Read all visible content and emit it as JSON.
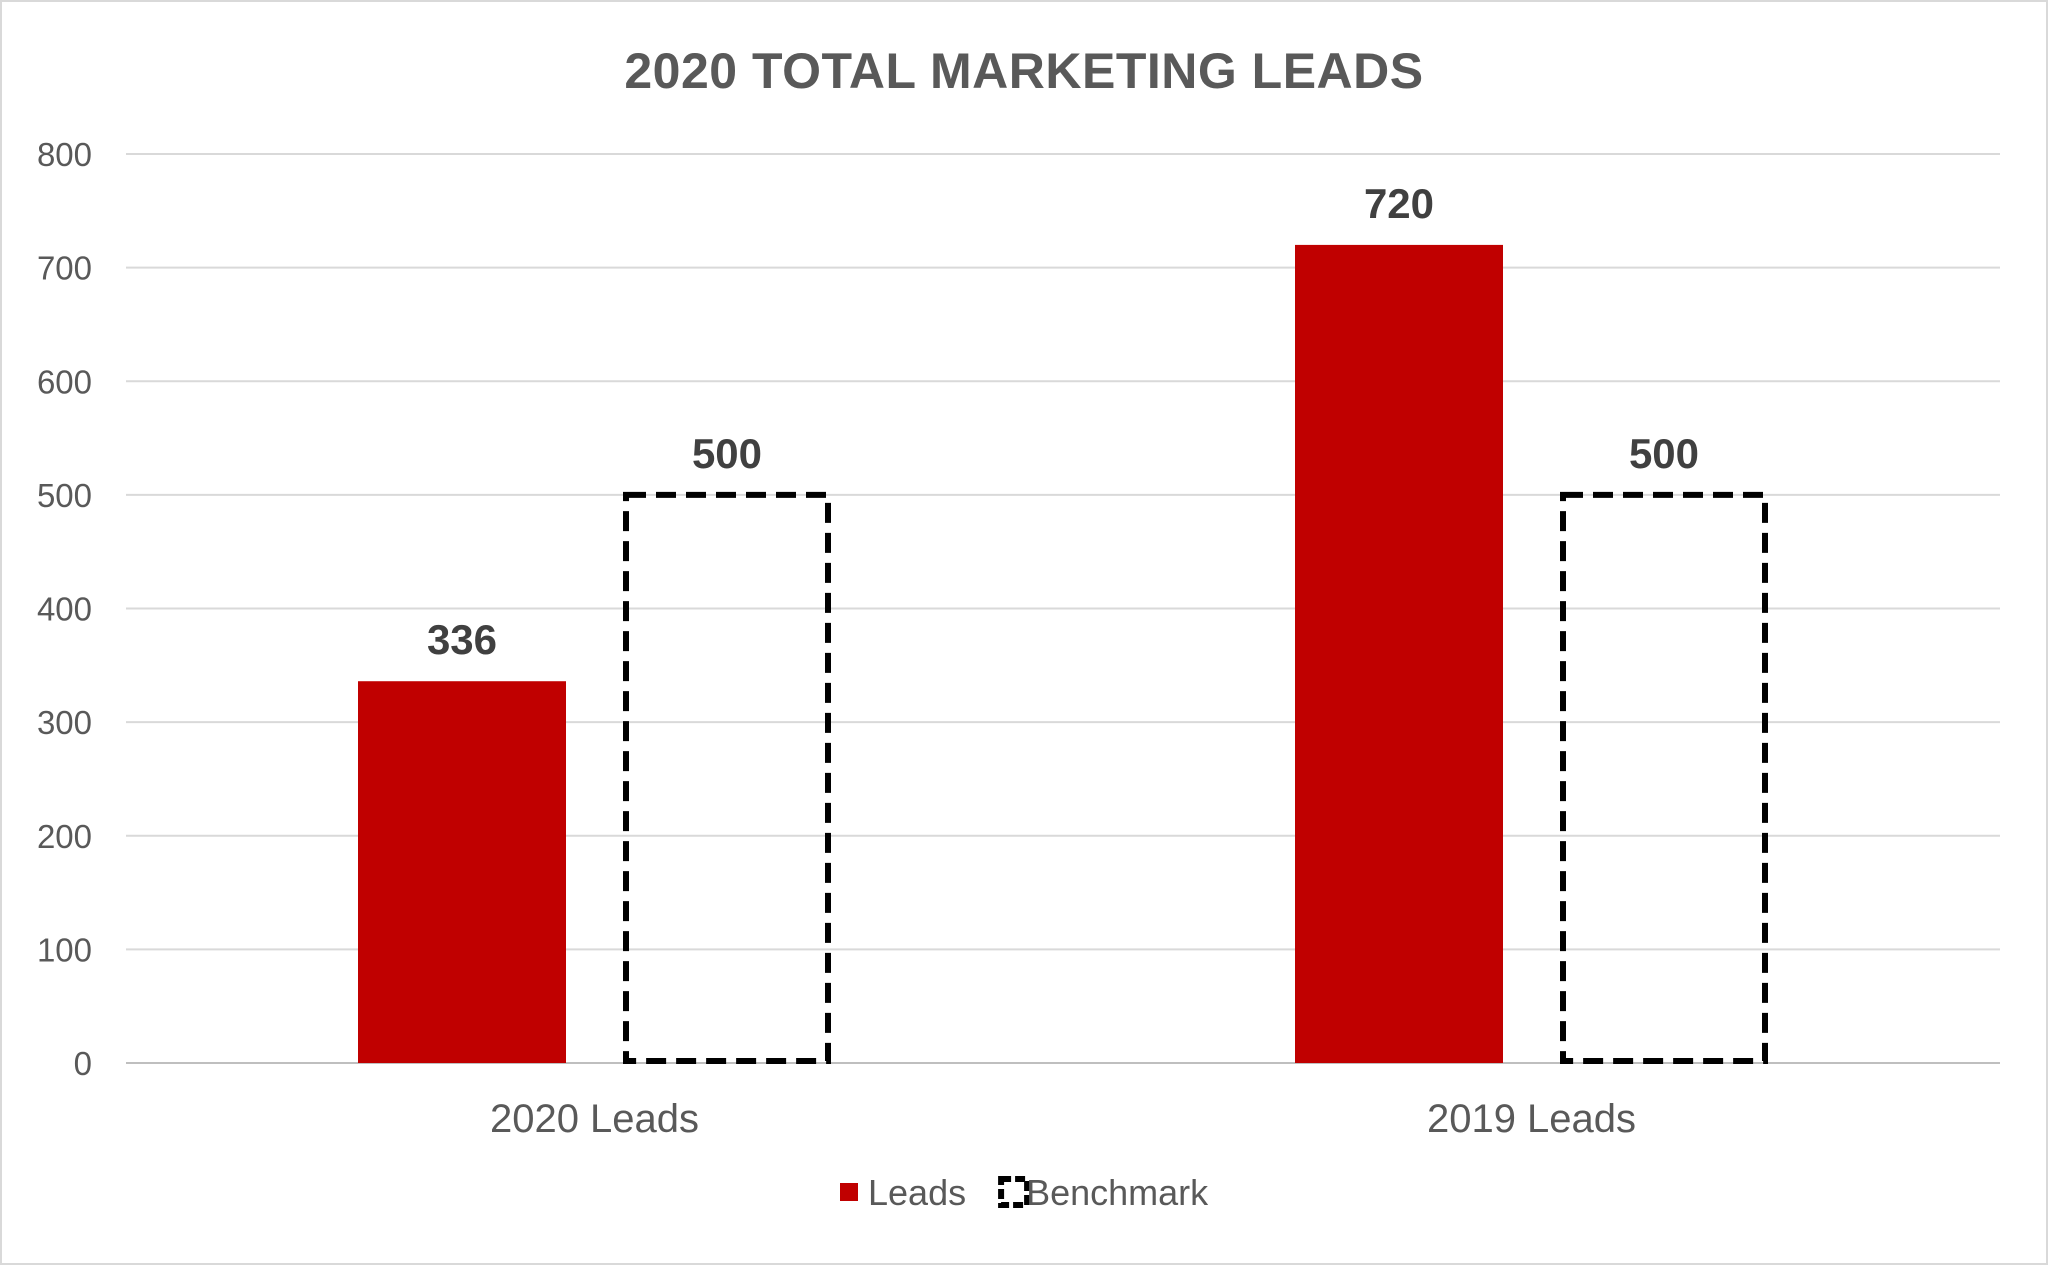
{
  "chart_data": {
    "type": "bar",
    "title": "2020 TOTAL MARKETING LEADS",
    "xlabel": "",
    "ylabel": "",
    "categories": [
      "2020 Leads",
      "2019 Leads"
    ],
    "series": [
      {
        "name": "Leads",
        "values": [
          336,
          720
        ],
        "color": "#c00000",
        "style": "solid-fill"
      },
      {
        "name": "Benchmark",
        "values": [
          500,
          500
        ],
        "color": "#000000",
        "style": "dashed-outline"
      }
    ],
    "ylim": [
      0,
      800
    ],
    "yticks": [
      0,
      100,
      200,
      300,
      400,
      500,
      600,
      700,
      800
    ],
    "grid": true,
    "legend": "bottom",
    "data_labels": true
  }
}
